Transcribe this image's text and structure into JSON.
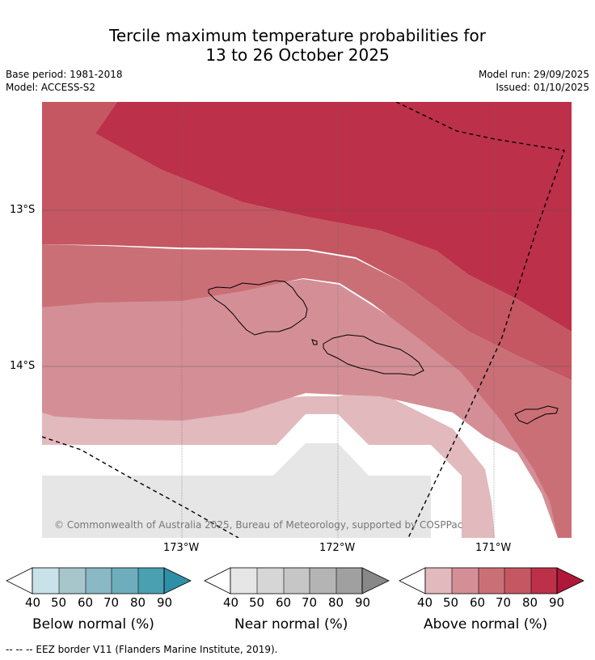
{
  "title_line1": "Tercile maximum temperature probabilities for",
  "title_line2": "13 to 26 October 2025",
  "base_period": "Base period: 1981-2018",
  "model": "Model: ACCESS-S2",
  "model_run": "Model run: 29/09/2025",
  "issued": "Issued: 01/10/2025",
  "lat_labels": [
    "13°S",
    "14°S"
  ],
  "lon_labels": [
    "173°W",
    "172°W",
    "171°W"
  ],
  "copyright": "© Commonwealth of Australia 2025, Bureau of Meteorology, supported by COSPPac",
  "colorbars": [
    {
      "label": "Below normal (%)",
      "ticks": [
        "40",
        "50",
        "60",
        "70",
        "80",
        "90"
      ],
      "colors": [
        "#ffffff",
        "#c9e1e8",
        "#a7c6cc",
        "#8ab8c4",
        "#6eaebc",
        "#4a9fb0",
        "#2f8fa6"
      ]
    },
    {
      "label": "Near normal (%)",
      "ticks": [
        "40",
        "50",
        "60",
        "70",
        "80",
        "90"
      ],
      "colors": [
        "#ffffff",
        "#e6e6e6",
        "#d6d6d6",
        "#c6c6c6",
        "#b4b4b4",
        "#a0a0a0",
        "#888888"
      ]
    },
    {
      "label": "Above normal (%)",
      "ticks": [
        "40",
        "50",
        "60",
        "70",
        "80",
        "90"
      ],
      "colors": [
        "#ffffff",
        "#e2b9bd",
        "#d48f96",
        "#cb6f77",
        "#c45761",
        "#bd3049",
        "#b0183a"
      ]
    }
  ],
  "footer": "--  --  -- EEZ border V11 (Flanders Marine Institute, 2019).",
  "palette": {
    "above_50": "#e2b9bd",
    "above_60": "#d48f96",
    "above_70": "#cb6f77",
    "above_80": "#c45761",
    "above_90": "#bd3049",
    "near_40_50": "#e6e6e6"
  }
}
